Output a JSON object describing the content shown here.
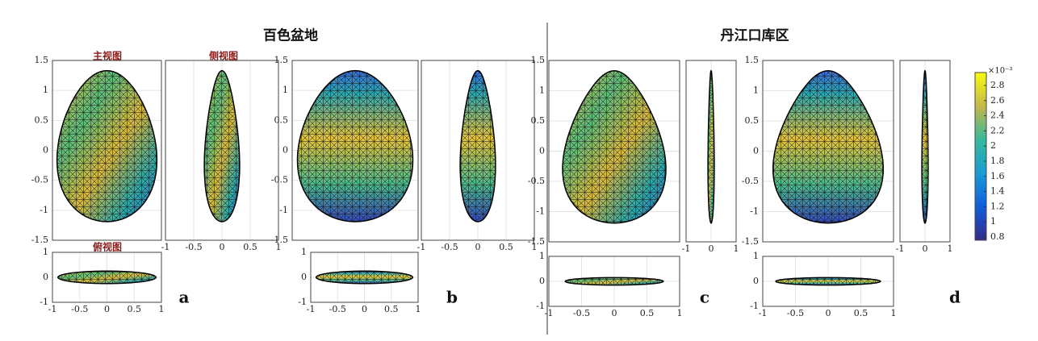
{
  "groups": [
    {
      "title": "百色盆地"
    },
    {
      "title": "丹江口库区"
    }
  ],
  "view_labels": {
    "front": "主视图",
    "side": "侧视图",
    "top": "俯视图"
  },
  "panels": [
    {
      "letter": "a"
    },
    {
      "letter": "b"
    },
    {
      "letter": "c"
    },
    {
      "letter": "d"
    }
  ],
  "ticks": {
    "main_y": [
      1.5,
      1,
      0.5,
      0,
      -0.5,
      -1,
      -1.5
    ],
    "side_x": [
      -1,
      -0.5,
      0,
      0.5,
      1
    ],
    "side_x_narrow": [
      -1,
      0,
      1
    ],
    "top_y": [
      1,
      0,
      -1
    ],
    "top_x": [
      -1,
      -0.5,
      0,
      0.5,
      1
    ]
  },
  "colorbar": {
    "exponent": "×10⁻³",
    "ticks": [
      2.8,
      2.6,
      2.4,
      2.2,
      2,
      1.8,
      1.6,
      1.4,
      1.2,
      1,
      0.8
    ]
  }
}
